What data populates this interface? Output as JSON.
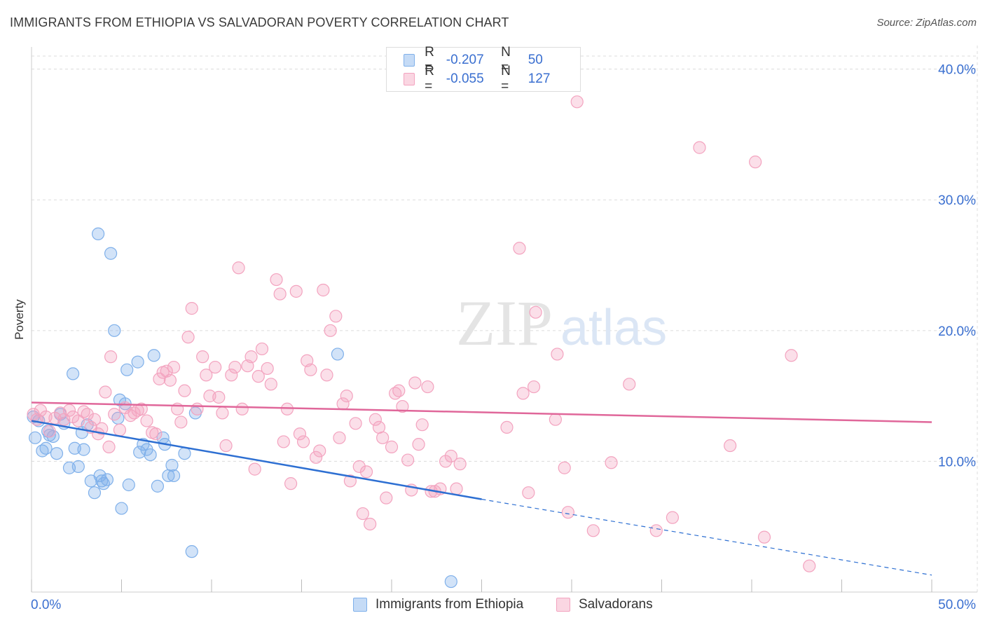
{
  "header": {
    "title": "IMMIGRANTS FROM ETHIOPIA VS SALVADORAN POVERTY CORRELATION CHART",
    "source": "Source: ZipAtlas.com"
  },
  "watermark": {
    "zip": "ZIP",
    "atlas": "atlas"
  },
  "stats": [
    {
      "r_label": "R =",
      "r_value": "-0.207",
      "n_label": "N =",
      "n_value": "50",
      "color": "#7fb0ea"
    },
    {
      "r_label": "R =",
      "r_value": "-0.055",
      "n_label": "N =",
      "n_value": "127",
      "color": "#f3a3bf"
    }
  ],
  "legend": [
    {
      "label": "Immigrants from Ethiopia",
      "color": "#7fb0ea"
    },
    {
      "label": "Salvadorans",
      "color": "#f3a3bf"
    }
  ],
  "chart_data": {
    "type": "scatter",
    "ylabel": "Poverty",
    "xlim": [
      0,
      50
    ],
    "ylim": [
      0,
      41
    ],
    "x_tick_labels": [
      "0.0%",
      "50.0%"
    ],
    "y_ticks": [
      10,
      20,
      30,
      40
    ],
    "y_tick_labels": [
      "10.0%",
      "20.0%",
      "30.0%",
      "40.0%"
    ],
    "grid": true,
    "series": [
      {
        "name": "Immigrants from Ethiopia",
        "color": "#7fb0ea",
        "line_color": "#2d6fd2",
        "trend": {
          "x0": 0,
          "y0": 13.1,
          "x1": 25,
          "y1": 7.1,
          "dash_x1": 50,
          "dash_y1": 1.3
        },
        "points": [
          [
            0.1,
            13.4
          ],
          [
            0.2,
            11.8
          ],
          [
            0.4,
            13.1
          ],
          [
            0.6,
            10.8
          ],
          [
            0.8,
            11.0
          ],
          [
            0.9,
            12.3
          ],
          [
            1.0,
            12.0
          ],
          [
            1.2,
            11.9
          ],
          [
            1.4,
            10.6
          ],
          [
            1.6,
            13.6
          ],
          [
            1.8,
            12.9
          ],
          [
            2.1,
            9.5
          ],
          [
            2.3,
            16.7
          ],
          [
            2.4,
            11.0
          ],
          [
            2.6,
            9.6
          ],
          [
            2.8,
            12.2
          ],
          [
            2.9,
            10.9
          ],
          [
            3.1,
            12.8
          ],
          [
            3.3,
            8.5
          ],
          [
            3.5,
            7.6
          ],
          [
            3.7,
            27.4
          ],
          [
            3.8,
            8.9
          ],
          [
            3.9,
            8.5
          ],
          [
            4.0,
            8.3
          ],
          [
            4.2,
            8.6
          ],
          [
            4.4,
            25.9
          ],
          [
            4.6,
            20.0
          ],
          [
            4.8,
            13.3
          ],
          [
            5.0,
            6.4
          ],
          [
            5.2,
            14.4
          ],
          [
            5.3,
            17.0
          ],
          [
            5.4,
            8.2
          ],
          [
            5.9,
            17.6
          ],
          [
            6.0,
            10.7
          ],
          [
            6.2,
            11.3
          ],
          [
            6.4,
            10.9
          ],
          [
            6.6,
            10.5
          ],
          [
            6.8,
            18.1
          ],
          [
            7.0,
            8.1
          ],
          [
            7.3,
            11.8
          ],
          [
            7.4,
            11.3
          ],
          [
            7.6,
            8.9
          ],
          [
            7.8,
            9.7
          ],
          [
            7.9,
            8.9
          ],
          [
            8.5,
            10.6
          ],
          [
            8.9,
            3.1
          ],
          [
            9.1,
            13.7
          ],
          [
            17.0,
            18.2
          ],
          [
            4.9,
            14.7
          ],
          [
            23.3,
            0.8
          ]
        ]
      },
      {
        "name": "Salvadorans",
        "color": "#f3a3bf",
        "line_color": "#e0679a",
        "trend": {
          "x0": 0,
          "y0": 14.5,
          "x1": 50,
          "y1": 13.0
        },
        "points": [
          [
            0.1,
            13.6
          ],
          [
            0.3,
            13.2
          ],
          [
            0.5,
            13.9
          ],
          [
            0.8,
            13.4
          ],
          [
            1.0,
            12.3
          ],
          [
            1.3,
            13.3
          ],
          [
            1.6,
            13.7
          ],
          [
            1.8,
            13.2
          ],
          [
            2.1,
            13.9
          ],
          [
            2.3,
            13.4
          ],
          [
            2.6,
            13.1
          ],
          [
            2.9,
            13.8
          ],
          [
            3.1,
            13.6
          ],
          [
            3.3,
            12.6
          ],
          [
            3.5,
            13.2
          ],
          [
            3.7,
            12.1
          ],
          [
            3.9,
            12.5
          ],
          [
            4.1,
            15.3
          ],
          [
            4.3,
            11.1
          ],
          [
            4.4,
            18.0
          ],
          [
            4.6,
            13.6
          ],
          [
            4.9,
            12.4
          ],
          [
            5.2,
            14.1
          ],
          [
            5.5,
            13.5
          ],
          [
            5.7,
            13.7
          ],
          [
            5.9,
            13.9
          ],
          [
            6.1,
            14.0
          ],
          [
            6.4,
            13.1
          ],
          [
            6.7,
            12.2
          ],
          [
            6.9,
            12.1
          ],
          [
            7.1,
            16.3
          ],
          [
            7.3,
            16.8
          ],
          [
            7.5,
            16.9
          ],
          [
            7.7,
            16.2
          ],
          [
            7.9,
            17.2
          ],
          [
            8.1,
            14.0
          ],
          [
            8.3,
            13.0
          ],
          [
            8.5,
            15.4
          ],
          [
            8.7,
            19.5
          ],
          [
            8.9,
            21.7
          ],
          [
            9.2,
            14.0
          ],
          [
            9.5,
            18.0
          ],
          [
            9.7,
            16.6
          ],
          [
            9.9,
            15.0
          ],
          [
            10.2,
            17.2
          ],
          [
            10.4,
            14.9
          ],
          [
            10.6,
            13.7
          ],
          [
            10.8,
            11.2
          ],
          [
            11.1,
            16.6
          ],
          [
            11.3,
            17.2
          ],
          [
            11.5,
            24.8
          ],
          [
            11.7,
            14.0
          ],
          [
            12.0,
            17.3
          ],
          [
            12.2,
            18.0
          ],
          [
            12.4,
            9.4
          ],
          [
            12.6,
            16.5
          ],
          [
            12.8,
            18.6
          ],
          [
            13.1,
            17.1
          ],
          [
            13.3,
            15.9
          ],
          [
            13.6,
            23.9
          ],
          [
            13.8,
            22.8
          ],
          [
            14.0,
            11.5
          ],
          [
            14.2,
            14.0
          ],
          [
            14.4,
            8.3
          ],
          [
            14.7,
            23.0
          ],
          [
            14.9,
            12.1
          ],
          [
            15.1,
            11.5
          ],
          [
            15.3,
            17.7
          ],
          [
            15.5,
            17.0
          ],
          [
            15.8,
            10.3
          ],
          [
            16.0,
            10.8
          ],
          [
            16.2,
            23.1
          ],
          [
            16.4,
            16.6
          ],
          [
            16.6,
            20.0
          ],
          [
            16.9,
            21.1
          ],
          [
            17.1,
            11.8
          ],
          [
            17.3,
            14.4
          ],
          [
            17.5,
            15.0
          ],
          [
            17.7,
            8.5
          ],
          [
            18.0,
            12.9
          ],
          [
            18.2,
            9.6
          ],
          [
            18.4,
            6.0
          ],
          [
            18.6,
            9.2
          ],
          [
            18.8,
            5.2
          ],
          [
            19.1,
            13.2
          ],
          [
            19.3,
            12.6
          ],
          [
            19.5,
            11.8
          ],
          [
            19.7,
            7.2
          ],
          [
            20.0,
            11.1
          ],
          [
            20.2,
            15.2
          ],
          [
            20.4,
            15.4
          ],
          [
            20.6,
            14.2
          ],
          [
            20.9,
            10.1
          ],
          [
            21.1,
            7.8
          ],
          [
            21.3,
            16.0
          ],
          [
            21.5,
            11.3
          ],
          [
            21.7,
            12.8
          ],
          [
            22.0,
            15.7
          ],
          [
            22.2,
            7.7
          ],
          [
            22.4,
            7.7
          ],
          [
            22.7,
            7.9
          ],
          [
            23.0,
            10.0
          ],
          [
            23.3,
            10.4
          ],
          [
            23.6,
            7.9
          ],
          [
            23.8,
            9.8
          ],
          [
            26.4,
            12.6
          ],
          [
            27.1,
            26.3
          ],
          [
            27.3,
            15.2
          ],
          [
            27.6,
            7.6
          ],
          [
            27.9,
            15.7
          ],
          [
            28.0,
            21.4
          ],
          [
            29.1,
            13.2
          ],
          [
            29.2,
            18.2
          ],
          [
            29.6,
            9.5
          ],
          [
            29.8,
            6.1
          ],
          [
            31.2,
            4.7
          ],
          [
            32.2,
            9.9
          ],
          [
            30.3,
            37.5
          ],
          [
            33.2,
            15.9
          ],
          [
            34.7,
            4.7
          ],
          [
            35.6,
            5.7
          ],
          [
            37.1,
            34.0
          ],
          [
            38.8,
            11.2
          ],
          [
            40.2,
            32.9
          ],
          [
            40.7,
            4.2
          ],
          [
            42.2,
            18.1
          ],
          [
            43.2,
            2.0
          ]
        ]
      }
    ]
  }
}
